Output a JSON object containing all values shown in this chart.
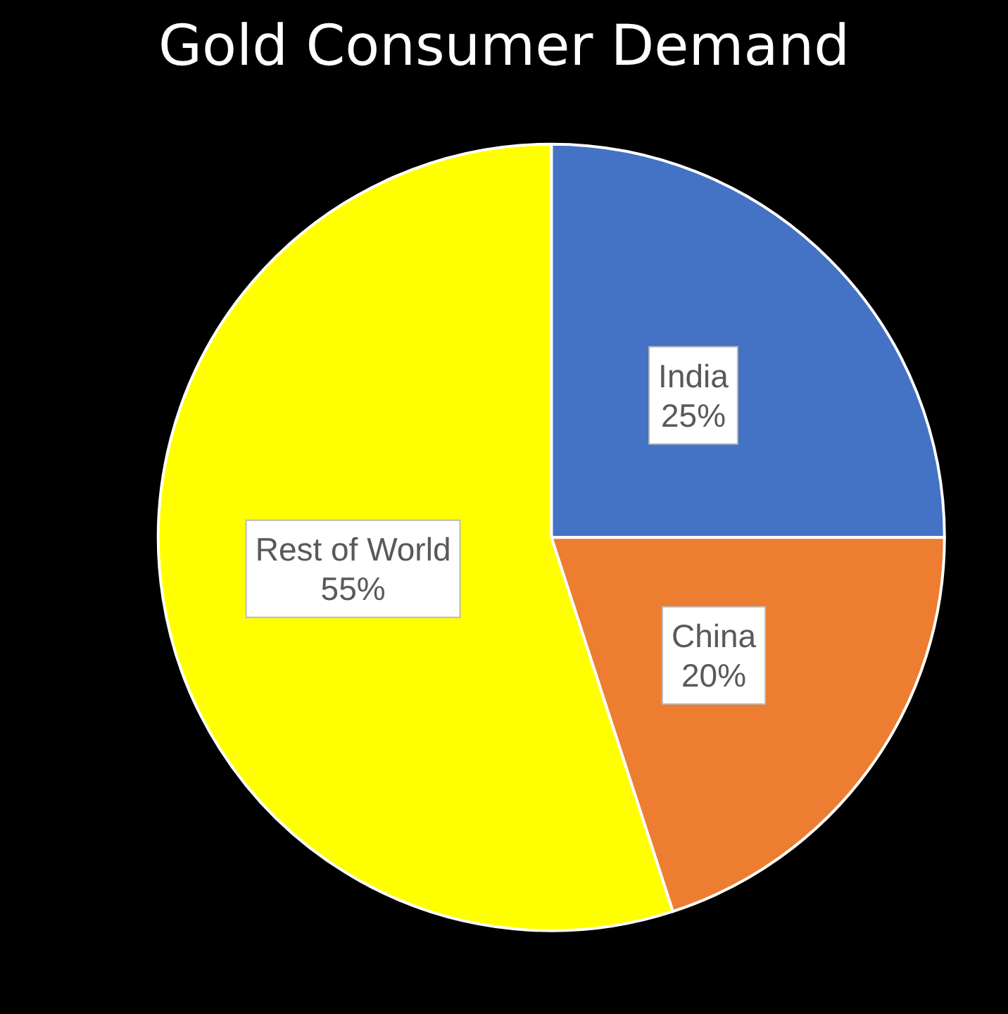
{
  "chart_data": {
    "type": "pie",
    "title": "Gold Consumer Demand",
    "categories": [
      "India",
      "China",
      "Rest of World"
    ],
    "values": [
      25,
      20,
      55
    ],
    "colors": [
      "#4472c4",
      "#ed7d31",
      "#ffff00"
    ],
    "value_labels": [
      "25%",
      "20%",
      "55%"
    ],
    "legend": false
  }
}
